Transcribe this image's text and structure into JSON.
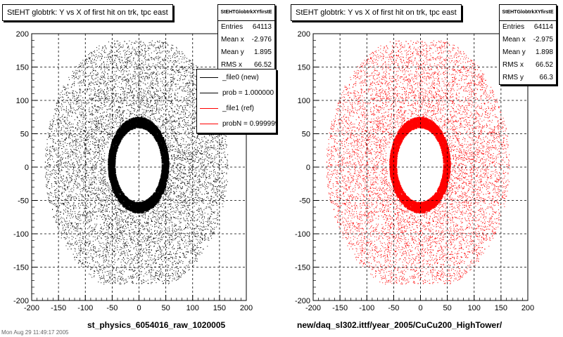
{
  "chart_data": [
    {
      "type": "scatter",
      "title": "StEHT globtrk: Y vs X of first hit on trk, tpc east",
      "xlim": [
        -200,
        200
      ],
      "ylim": [
        -200,
        200
      ],
      "x_ticks": [
        "-200",
        "-150",
        "-100",
        "-50",
        "0",
        "50",
        "100",
        "150",
        "200"
      ],
      "y_ticks": [
        "-200",
        "-150",
        "-100",
        "-50",
        "0",
        "50",
        "100",
        "150",
        "200"
      ],
      "grid": true,
      "marker_color": "#000000",
      "caption": "st_physics_6054016_raw_1020005",
      "stats": {
        "title": "StEHTGlobtrkXYfirstE",
        "rows": [
          {
            "label": "Entries",
            "value": "64113"
          },
          {
            "label": "Mean x",
            "value": "-2.976"
          },
          {
            "label": "Mean y",
            "value": "1.895"
          },
          {
            "label": "RMS x",
            "value": "66.52"
          }
        ]
      },
      "legend": {
        "placement": "top-right",
        "entries": [
          {
            "label": "_file0 (new)",
            "color": "#000000"
          },
          {
            "label": "prob = 1.000000",
            "color": "#000000"
          },
          {
            "label": "_file1 (ref)",
            "color": "#ff0000"
          },
          {
            "label": "probN = 0.999999",
            "color": "#ff0000"
          }
        ]
      }
    },
    {
      "type": "scatter",
      "title": "StEHT globtrk: Y vs X of first hit on trk, tpc east",
      "xlim": [
        -200,
        200
      ],
      "ylim": [
        -200,
        200
      ],
      "x_ticks": [
        "-200",
        "-150",
        "-100",
        "-50",
        "0",
        "50",
        "100",
        "150",
        "200"
      ],
      "y_ticks": [
        "-200",
        "-150",
        "-100",
        "-50",
        "0",
        "50",
        "100",
        "150",
        "200"
      ],
      "grid": true,
      "marker_color": "#ff0000",
      "caption": "new/daq_sl302.ittf/year_2005/CuCu200_HighTower/",
      "stats": {
        "title": "StEHTGlobtrkXYfirstE",
        "rows": [
          {
            "label": "Entries",
            "value": "64114"
          },
          {
            "label": "Mean x",
            "value": "-2.975"
          },
          {
            "label": "Mean y",
            "value": "1.898"
          },
          {
            "label": "RMS x",
            "value": "66.52"
          },
          {
            "label": "RMS y",
            "value": "66.3"
          }
        ]
      }
    }
  ],
  "footer": "Mon Aug 29 11:49:17 2005"
}
